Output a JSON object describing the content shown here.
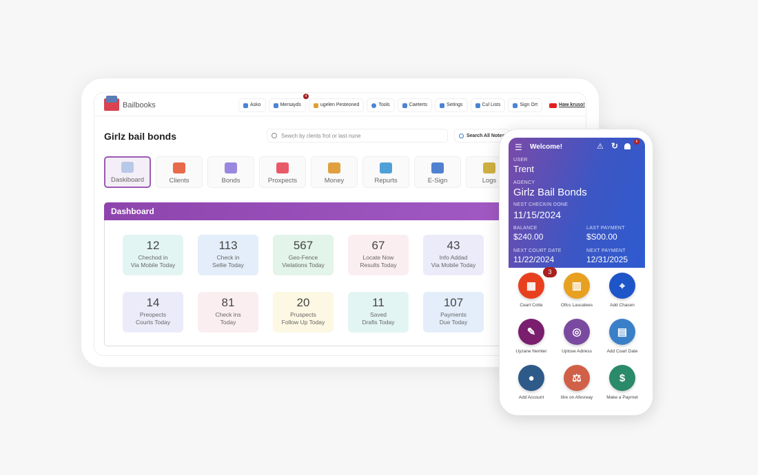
{
  "header": {
    "brand": "Bailbooks",
    "nav": [
      {
        "label": "Asko",
        "icon": "user-icon"
      },
      {
        "label": "Mersayds",
        "icon": "message-icon",
        "badge": "4"
      },
      {
        "label": "ugelen Pesteoned",
        "icon": "password-icon"
      },
      {
        "label": "Tools",
        "icon": "tools-icon"
      },
      {
        "label": "Caeterts",
        "icon": "phone-icon"
      },
      {
        "label": "Setings",
        "icon": "settings-icon"
      },
      {
        "label": "Cul Lists",
        "icon": "list-icon"
      },
      {
        "label": "Sign Ort",
        "icon": "sign-out-icon"
      },
      {
        "label": "Haw kruso!",
        "icon": "youtube-icon"
      }
    ]
  },
  "page": {
    "title": "Girlz bail bonds",
    "search_placeholder": "Sewch by clents frot or last nune",
    "search_notes": "Search All Notes"
  },
  "tiles": [
    {
      "label": "Daskiboard",
      "color": "#b8c8e8"
    },
    {
      "label": "Clients",
      "color": "#e86a4a"
    },
    {
      "label": "Bonds",
      "color": "#9a88e0"
    },
    {
      "label": "Proxpects",
      "color": "#e85a6a"
    },
    {
      "label": "Money",
      "color": "#e0a040"
    },
    {
      "label": "Repurts",
      "color": "#50a0d8"
    },
    {
      "label": "E-Sign",
      "color": "#5080d0"
    },
    {
      "label": "Logs",
      "color": "#d0b040"
    }
  ],
  "dashboard": {
    "title": "Dashboard",
    "cards": [
      {
        "value": "12",
        "label1": "Chechod in",
        "label2": "Via Mobile Today",
        "color": "#e3f5f3"
      },
      {
        "value": "113",
        "label1": "Check in",
        "label2": "Sellie Today",
        "color": "#e4eefa"
      },
      {
        "value": "567",
        "label1": "Geo-Fence",
        "label2": "Vielations Today",
        "color": "#e3f4ea"
      },
      {
        "value": "67",
        "label1": "Locate Now",
        "label2": "Results Today",
        "color": "#fbeef0"
      },
      {
        "value": "43",
        "label1": "Info Addad",
        "label2": "Via Mobile Today",
        "color": "#ecebfa"
      },
      {
        "value": "14",
        "label1": "Preopects",
        "label2": "Courts Today",
        "color": "#ecebfa"
      },
      {
        "value": "81",
        "label1": "Check ins",
        "label2": "Today",
        "color": "#fbeef0"
      },
      {
        "value": "20",
        "label1": "Pruspects",
        "label2": "Follow Up Today",
        "color": "#fcf8e3"
      },
      {
        "value": "11",
        "label1": "Saved",
        "label2": "Drafis Today",
        "color": "#e3f5f3"
      },
      {
        "value": "107",
        "label1": "Payments",
        "label2": "Due Today",
        "color": "#e4eefa"
      }
    ]
  },
  "phone": {
    "welcome": "Welcome!",
    "notif_badge": "6",
    "user_label": "USER",
    "user": "Trent",
    "agency_label": "AGENCY",
    "agency": "Girlz Bail Bonds",
    "next_label": "NEST CHECKIN DONE",
    "next": "11/15/2024",
    "balance_label": "BALANCE",
    "balance": "$240.00",
    "last_label": "LAST PAYMENT",
    "last": "$S00.00",
    "court_label": "NEXT COURT DATE",
    "court": "11/22/2024",
    "npay_label": "NEXT PAYMENT",
    "npay": "12/31/2025",
    "actions": [
      {
        "label": "Ceart Cotte",
        "color": "#e8401e",
        "glyph": "▦",
        "badge": "3"
      },
      {
        "label": "Ofics Lascatees",
        "color": "#e8a020",
        "glyph": "▥"
      },
      {
        "label": "Add Chacen",
        "color": "#1e55c8",
        "glyph": "⌖"
      },
      {
        "label": "Uyzane Nemter",
        "color": "#7a1e6e",
        "glyph": "✎"
      },
      {
        "label": "Uptose Adiress",
        "color": "#7a4aa0",
        "glyph": "◎"
      },
      {
        "label": "Add Coart Date",
        "color": "#3a80c8",
        "glyph": "▤"
      },
      {
        "label": "Add Account",
        "color": "#2e5a8a",
        "glyph": "●"
      },
      {
        "label": "Iilre on Afesreay",
        "color": "#d06048",
        "glyph": "⚖"
      },
      {
        "label": "Make a Payrnet",
        "color": "#2a8a6a",
        "glyph": "$"
      }
    ]
  }
}
